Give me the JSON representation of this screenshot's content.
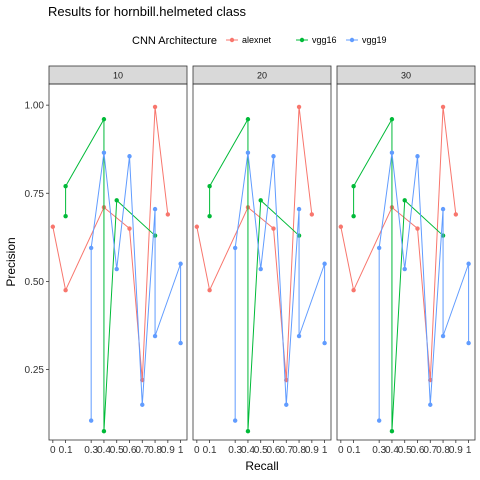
{
  "chart_data": {
    "type": "line",
    "title": "Results for hornbill.helmeted class",
    "xlabel": "Recall",
    "ylabel": "Precision",
    "legend": {
      "title": "CNN Architecture",
      "placement": "top",
      "entries": [
        "alexnet",
        "vgg16",
        "vgg19"
      ]
    },
    "facets": [
      "10",
      "20",
      "30"
    ],
    "xlim": [
      -0.03,
      1.05
    ],
    "ylim": [
      0.05,
      1.06
    ],
    "x_ticks": [
      "0",
      "0.1",
      "0.3",
      "0.4",
      "0.5",
      "0.6",
      "0.7",
      "0.8",
      "0.9",
      "1"
    ],
    "x_tick_values": [
      0,
      0.1,
      0.3,
      0.4,
      0.5,
      0.6,
      0.7,
      0.8,
      0.9,
      1
    ],
    "y_ticks": [
      "0.25",
      "0.50",
      "0.75",
      "1.00"
    ],
    "y_tick_values": [
      0.25,
      0.5,
      0.75,
      1.0
    ],
    "grid": false,
    "series": [
      {
        "name": "alexnet",
        "color": "#F8766D",
        "points": [
          [
            0,
            0.655
          ],
          [
            0.1,
            0.475
          ],
          [
            0.4,
            0.71
          ],
          [
            0.6,
            0.65
          ],
          [
            0.7,
            0.22
          ],
          [
            0.8,
            0.995
          ],
          [
            0.9,
            0.69
          ]
        ]
      },
      {
        "name": "vgg16",
        "color": "#00BA38",
        "points": [
          [
            0.1,
            0.685
          ],
          [
            0.1,
            0.77
          ],
          [
            0.4,
            0.96
          ],
          [
            0.4,
            0.075
          ],
          [
            0.5,
            0.73
          ],
          [
            0.8,
            0.63
          ]
        ]
      },
      {
        "name": "vgg19",
        "color": "#619CFF",
        "points": [
          [
            0.3,
            0.105
          ],
          [
            0.3,
            0.595
          ],
          [
            0.4,
            0.865
          ],
          [
            0.5,
            0.535
          ],
          [
            0.6,
            0.855
          ],
          [
            0.7,
            0.15
          ],
          [
            0.8,
            0.705
          ],
          [
            0.8,
            0.345
          ],
          [
            1.0,
            0.55
          ],
          [
            1.0,
            0.325
          ]
        ]
      }
    ]
  }
}
